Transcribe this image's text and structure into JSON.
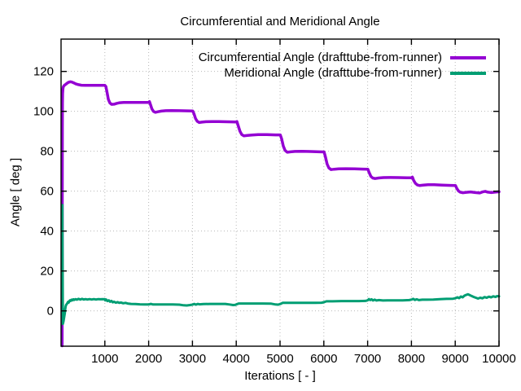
{
  "page": {
    "background": "#ffffff",
    "text_color": "#000000"
  },
  "chart_data": {
    "type": "line",
    "title": "Circumferential and Meridional Angle",
    "xlabel": "Iterations [ - ]",
    "ylabel": "Angle [ deg ]",
    "xlim": [
      0,
      10000
    ],
    "ylim": [
      -17.7,
      136.2
    ],
    "xticks": [
      1000,
      2000,
      3000,
      4000,
      5000,
      6000,
      7000,
      8000,
      9000,
      10000
    ],
    "yticks": [
      0,
      20,
      40,
      60,
      80,
      100,
      120
    ],
    "grid": "dotted",
    "grid_color": "#b8b8b8",
    "axis_color": "#000000",
    "legend_position": "top-right-inside",
    "series": [
      {
        "name": "Circumferential Angle (drafttube-from-runner)",
        "color": "#9400d3",
        "points": [
          [
            25,
            -17.5
          ],
          [
            26,
            25
          ],
          [
            27,
            60
          ],
          [
            29,
            92
          ],
          [
            32,
            104
          ],
          [
            36,
            109
          ],
          [
            42,
            111.3
          ],
          [
            50,
            112.2
          ],
          [
            65,
            112.8
          ],
          [
            85,
            113.2
          ],
          [
            110,
            113.6
          ],
          [
            140,
            114.1
          ],
          [
            175,
            114.6
          ],
          [
            210,
            114.8
          ],
          [
            245,
            114.7
          ],
          [
            285,
            114.3
          ],
          [
            335,
            113.8
          ],
          [
            395,
            113.4
          ],
          [
            465,
            113.1
          ],
          [
            550,
            113
          ],
          [
            700,
            113
          ],
          [
            850,
            113
          ],
          [
            1000,
            113
          ],
          [
            1025,
            112.4
          ],
          [
            1050,
            109.5
          ],
          [
            1080,
            106
          ],
          [
            1115,
            104.2
          ],
          [
            1155,
            103.5
          ],
          [
            1210,
            103.6
          ],
          [
            1270,
            104
          ],
          [
            1340,
            104.3
          ],
          [
            1430,
            104.45
          ],
          [
            1550,
            104.5
          ],
          [
            1700,
            104.5
          ],
          [
            1850,
            104.45
          ],
          [
            1995,
            104.45
          ],
          [
            2018,
            104.9
          ],
          [
            2045,
            103.2
          ],
          [
            2075,
            101.2
          ],
          [
            2110,
            100
          ],
          [
            2150,
            99.5
          ],
          [
            2210,
            99.8
          ],
          [
            2290,
            100.1
          ],
          [
            2390,
            100.3
          ],
          [
            2520,
            100.35
          ],
          [
            2700,
            100.3
          ],
          [
            2900,
            100.25
          ],
          [
            3005,
            100.2
          ],
          [
            3035,
            98.8
          ],
          [
            3070,
            96.4
          ],
          [
            3110,
            95
          ],
          [
            3155,
            94.4
          ],
          [
            3220,
            94.6
          ],
          [
            3310,
            94.8
          ],
          [
            3450,
            94.9
          ],
          [
            3600,
            94.85
          ],
          [
            3800,
            94.75
          ],
          [
            3995,
            94.7
          ],
          [
            4015,
            94.9
          ],
          [
            4045,
            92.8
          ],
          [
            4085,
            90
          ],
          [
            4125,
            88.4
          ],
          [
            4175,
            87.7
          ],
          [
            4255,
            87.9
          ],
          [
            4360,
            88.1
          ],
          [
            4500,
            88.3
          ],
          [
            4700,
            88.3
          ],
          [
            4900,
            88.2
          ],
          [
            5005,
            88.2
          ],
          [
            5035,
            86.3
          ],
          [
            5075,
            82.6
          ],
          [
            5115,
            80.4
          ],
          [
            5165,
            79.5
          ],
          [
            5240,
            79.7
          ],
          [
            5340,
            79.9
          ],
          [
            5500,
            79.95
          ],
          [
            5700,
            79.85
          ],
          [
            5900,
            79.7
          ],
          [
            6005,
            79.65
          ],
          [
            6035,
            77.3
          ],
          [
            6075,
            73.6
          ],
          [
            6115,
            71.6
          ],
          [
            6165,
            70.8
          ],
          [
            6240,
            71
          ],
          [
            6340,
            71.2
          ],
          [
            6500,
            71.25
          ],
          [
            6700,
            71.15
          ],
          [
            6900,
            71.05
          ],
          [
            7005,
            71
          ],
          [
            7035,
            69.3
          ],
          [
            7075,
            67.4
          ],
          [
            7115,
            66.6
          ],
          [
            7170,
            66.3
          ],
          [
            7250,
            66.6
          ],
          [
            7360,
            66.8
          ],
          [
            7520,
            66.85
          ],
          [
            7700,
            66.8
          ],
          [
            7900,
            66.7
          ],
          [
            8000,
            66.7
          ],
          [
            8022,
            67.05
          ],
          [
            8050,
            65.4
          ],
          [
            8090,
            64
          ],
          [
            8135,
            63.1
          ],
          [
            8190,
            62.8
          ],
          [
            8270,
            63
          ],
          [
            8380,
            63.2
          ],
          [
            8520,
            63.2
          ],
          [
            8700,
            63.05
          ],
          [
            8900,
            62.9
          ],
          [
            9005,
            62.85
          ],
          [
            9035,
            61.4
          ],
          [
            9075,
            60.1
          ],
          [
            9115,
            59.5
          ],
          [
            9170,
            59.2
          ],
          [
            9250,
            59.4
          ],
          [
            9350,
            59.6
          ],
          [
            9460,
            59.3
          ],
          [
            9560,
            59.1
          ],
          [
            9625,
            59.6
          ],
          [
            9685,
            59.9
          ],
          [
            9745,
            59.5
          ],
          [
            9825,
            59.3
          ],
          [
            9905,
            59.5
          ],
          [
            10000,
            59.7
          ]
        ]
      },
      {
        "name": "Meridional Angle (drafttube-from-runner)",
        "color": "#009e73",
        "points": [
          [
            30,
            53
          ],
          [
            40,
            -6.5
          ],
          [
            55,
            -5.2
          ],
          [
            70,
            -3.2
          ],
          [
            85,
            -1.2
          ],
          [
            95,
            0.8
          ],
          [
            105,
            2.2
          ],
          [
            115,
            3
          ],
          [
            130,
            3.4
          ],
          [
            145,
            3.9
          ],
          [
            160,
            4.5
          ],
          [
            175,
            4.2
          ],
          [
            190,
            4.9
          ],
          [
            205,
            5.3
          ],
          [
            220,
            5
          ],
          [
            240,
            5.6
          ],
          [
            260,
            5.3
          ],
          [
            280,
            5.8
          ],
          [
            300,
            5.5
          ],
          [
            330,
            5.9
          ],
          [
            360,
            5.6
          ],
          [
            400,
            6
          ],
          [
            440,
            5.7
          ],
          [
            480,
            6
          ],
          [
            520,
            5.7
          ],
          [
            560,
            5.9
          ],
          [
            600,
            5.7
          ],
          [
            650,
            5.9
          ],
          [
            700,
            5.7
          ],
          [
            750,
            5.9
          ],
          [
            800,
            5.7
          ],
          [
            850,
            5.9
          ],
          [
            900,
            5.8
          ],
          [
            950,
            5.9
          ],
          [
            1000,
            5.8
          ],
          [
            1010,
            5.3
          ],
          [
            1030,
            5.7
          ],
          [
            1060,
            4.9
          ],
          [
            1090,
            5.3
          ],
          [
            1120,
            4.6
          ],
          [
            1150,
            5
          ],
          [
            1180,
            4.3
          ],
          [
            1210,
            4.6
          ],
          [
            1250,
            4.1
          ],
          [
            1290,
            4.4
          ],
          [
            1330,
            4
          ],
          [
            1370,
            4.2
          ],
          [
            1420,
            3.8
          ],
          [
            1470,
            4
          ],
          [
            1520,
            3.7
          ],
          [
            1600,
            3.5
          ],
          [
            1700,
            3.4
          ],
          [
            1800,
            3.3
          ],
          [
            1900,
            3.25
          ],
          [
            2000,
            3.2
          ],
          [
            2050,
            3.5
          ],
          [
            2100,
            3.2
          ],
          [
            2250,
            3.2
          ],
          [
            2400,
            3.2
          ],
          [
            2550,
            3.2
          ],
          [
            2700,
            3.1
          ],
          [
            2800,
            2.8
          ],
          [
            2870,
            2.7
          ],
          [
            2940,
            2.9
          ],
          [
            3000,
            3.1
          ],
          [
            3040,
            3.5
          ],
          [
            3080,
            3.1
          ],
          [
            3120,
            3.5
          ],
          [
            3160,
            3.3
          ],
          [
            3250,
            3.4
          ],
          [
            3400,
            3.5
          ],
          [
            3600,
            3.5
          ],
          [
            3750,
            3.5
          ],
          [
            3850,
            3.2
          ],
          [
            3930,
            2.9
          ],
          [
            3980,
            3
          ],
          [
            4020,
            3.4
          ],
          [
            4060,
            3.7
          ],
          [
            4200,
            3.7
          ],
          [
            4400,
            3.7
          ],
          [
            4600,
            3.7
          ],
          [
            4800,
            3.6
          ],
          [
            4900,
            3.2
          ],
          [
            4960,
            3.1
          ],
          [
            5010,
            3.5
          ],
          [
            5060,
            4
          ],
          [
            5200,
            4
          ],
          [
            5400,
            4
          ],
          [
            5600,
            4
          ],
          [
            5800,
            4
          ],
          [
            5950,
            4.1
          ],
          [
            6010,
            4.4
          ],
          [
            6060,
            4.8
          ],
          [
            6200,
            4.8
          ],
          [
            6400,
            4.9
          ],
          [
            6600,
            4.9
          ],
          [
            6800,
            4.9
          ],
          [
            6950,
            5
          ],
          [
            7000,
            5.3
          ],
          [
            7030,
            5.9
          ],
          [
            7060,
            5.4
          ],
          [
            7090,
            5.8
          ],
          [
            7120,
            5.2
          ],
          [
            7160,
            5.6
          ],
          [
            7200,
            5.2
          ],
          [
            7260,
            5.4
          ],
          [
            7350,
            5.2
          ],
          [
            7450,
            5.3
          ],
          [
            7600,
            5.3
          ],
          [
            7800,
            5.3
          ],
          [
            7950,
            5.4
          ],
          [
            8010,
            5.7
          ],
          [
            8040,
            6
          ],
          [
            8080,
            5.5
          ],
          [
            8120,
            5.8
          ],
          [
            8170,
            5.4
          ],
          [
            8250,
            5.6
          ],
          [
            8350,
            5.6
          ],
          [
            8500,
            5.7
          ],
          [
            8650,
            5.9
          ],
          [
            8800,
            6
          ],
          [
            8950,
            6.1
          ],
          [
            9000,
            6.3
          ],
          [
            9050,
            6.8
          ],
          [
            9090,
            6.4
          ],
          [
            9130,
            7.2
          ],
          [
            9170,
            6.8
          ],
          [
            9210,
            7.6
          ],
          [
            9250,
            8
          ],
          [
            9290,
            8.3
          ],
          [
            9330,
            7.9
          ],
          [
            9370,
            7.5
          ],
          [
            9420,
            7
          ],
          [
            9470,
            6.6
          ],
          [
            9520,
            6.2
          ],
          [
            9570,
            6.6
          ],
          [
            9620,
            6.3
          ],
          [
            9670,
            6.9
          ],
          [
            9720,
            6.6
          ],
          [
            9770,
            7.1
          ],
          [
            9820,
            6.8
          ],
          [
            9870,
            7.3
          ],
          [
            9920,
            7
          ],
          [
            9960,
            7.4
          ],
          [
            10000,
            7.3
          ]
        ]
      }
    ]
  }
}
